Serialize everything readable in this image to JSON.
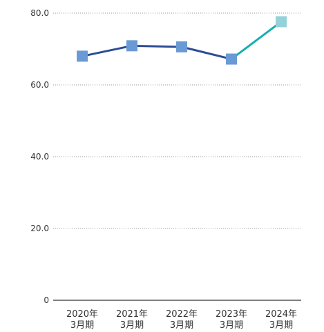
{
  "chart_data": {
    "type": "line",
    "categories": [
      [
        "2020年",
        "3月期"
      ],
      [
        "2021年",
        "3月期"
      ],
      [
        "2022年",
        "3月期"
      ],
      [
        "2023年",
        "3月期"
      ],
      [
        "2024年",
        "3月期"
      ]
    ],
    "values": [
      68.0,
      70.9,
      70.6,
      67.2,
      77.6
    ],
    "ylim": [
      0,
      80
    ],
    "yticks": [
      0,
      20,
      40,
      60,
      80
    ],
    "ytick_labels": [
      "0",
      "20.0",
      "40.0",
      "60.0",
      "80.0"
    ],
    "grid": true,
    "title": "",
    "xlabel": "",
    "ylabel": "",
    "colors": {
      "line_main": "#2b4c96",
      "line_last": "#16aeb0",
      "marker_main": "#6a9ad6",
      "marker_last": "#96d1d8",
      "axis": "#333333",
      "grid": "#9a9a9a"
    }
  }
}
